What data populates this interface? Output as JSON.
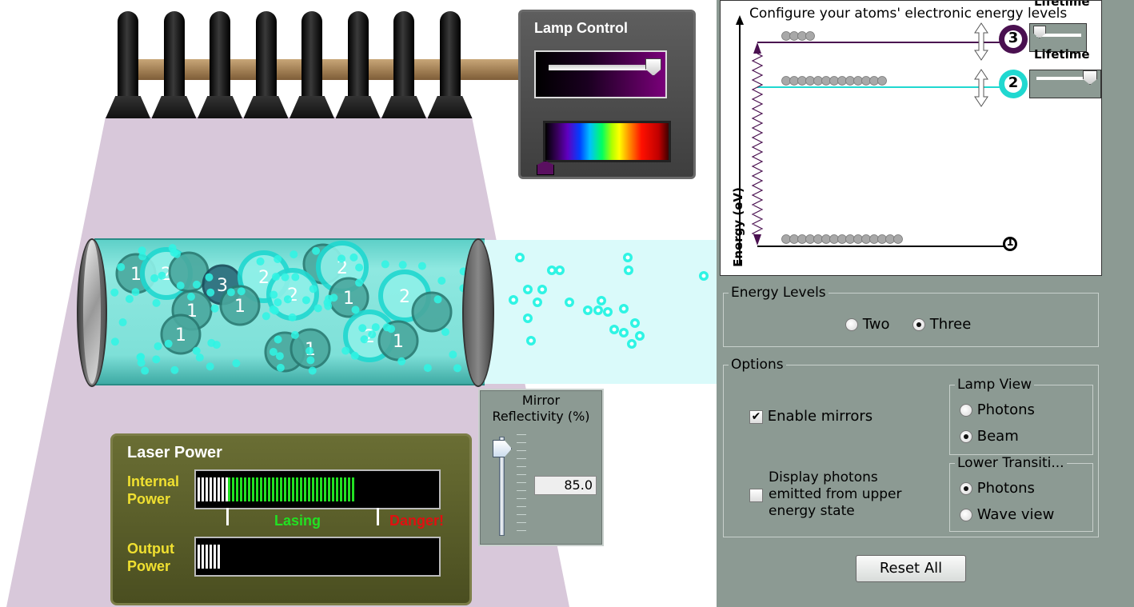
{
  "lamp_control": {
    "title": "Lamp Control"
  },
  "laser_power": {
    "title": "Laser Power",
    "internal_label_1": "Internal",
    "internal_label_2": "Power",
    "output_label_1": "Output",
    "output_label_2": "Power",
    "lasing_label": "Lasing",
    "danger_label": "Danger!"
  },
  "mirror": {
    "title_1": "Mirror",
    "title_2": "Reflectivity (%)",
    "value": "85.0"
  },
  "energy_diagram": {
    "title": "Configure your atoms' electronic energy levels",
    "y_axis": "Energy (eV)",
    "lifetime_label": "Lifetime",
    "level_1": "1",
    "level_2": "2",
    "level_3": "3"
  },
  "atom_labels": {
    "one": "1",
    "two": "2",
    "three": "3"
  },
  "energy_levels": {
    "title": "Energy Levels",
    "options": [
      "Two",
      "Three"
    ],
    "selected": "Three"
  },
  "options": {
    "title": "Options",
    "enable_mirrors": "Enable mirrors",
    "enable_mirrors_checked": true,
    "check_mark": "✔",
    "display_photons_1": "Display photons",
    "display_photons_2": "emitted from upper",
    "display_photons_3": "energy state"
  },
  "lamp_view": {
    "title": "Lamp View",
    "options": [
      "Photons",
      "Beam"
    ],
    "selected": "Beam"
  },
  "lower_transition": {
    "title": "Lower Transiti...",
    "options": [
      "Photons",
      "Wave view"
    ],
    "selected": "Photons"
  },
  "reset": {
    "label": "Reset All"
  },
  "colors": {
    "beam": "#d8c8da",
    "tube": "#7ee0d8",
    "photon": "#2ff4e4",
    "panel_bg": "#8c9a93",
    "level3": "#4a1050",
    "level2": "#20d8d0",
    "power_green": "#22e022"
  }
}
